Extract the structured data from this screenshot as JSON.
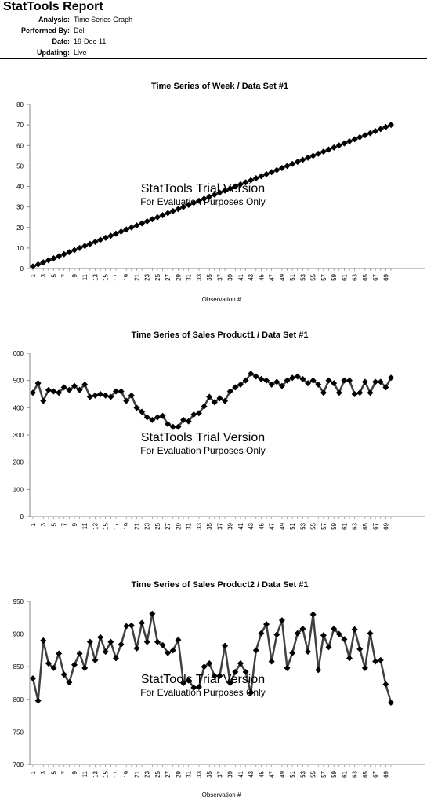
{
  "report": {
    "title": "StatTools Report",
    "meta": [
      {
        "key": "Analysis:",
        "value": "Time Series Graph"
      },
      {
        "key": "Performed By:",
        "value": "Dell"
      },
      {
        "key": "Date:",
        "value": "19-Dec-11"
      },
      {
        "key": "Updating:",
        "value": "Live"
      }
    ]
  },
  "watermark": {
    "line1": "StatTools Trial Version",
    "line2": "For Evaluation Purposes Only"
  },
  "chart_data": [
    {
      "type": "line",
      "title": "Time Series of Week / Data Set #1",
      "xlabel": "Observation #",
      "ylabel": "",
      "ylim": [
        0,
        80
      ],
      "yticks": [
        0,
        10,
        20,
        30,
        40,
        50,
        60,
        70,
        80
      ],
      "x": [
        1,
        2,
        3,
        4,
        5,
        6,
        7,
        8,
        9,
        10,
        11,
        12,
        13,
        14,
        15,
        16,
        17,
        18,
        19,
        20,
        21,
        22,
        23,
        24,
        25,
        26,
        27,
        28,
        29,
        30,
        31,
        32,
        33,
        34,
        35,
        36,
        37,
        38,
        39,
        40,
        41,
        42,
        43,
        44,
        45,
        46,
        47,
        48,
        49,
        50,
        51,
        52,
        53,
        54,
        55,
        56,
        57,
        58,
        59,
        60,
        61,
        62,
        63,
        64,
        65,
        66,
        67,
        68,
        69,
        70
      ],
      "xticks": [
        1,
        3,
        5,
        7,
        9,
        11,
        13,
        15,
        17,
        19,
        21,
        23,
        25,
        27,
        29,
        31,
        33,
        35,
        37,
        39,
        41,
        43,
        45,
        47,
        49,
        51,
        53,
        55,
        57,
        59,
        61,
        63,
        65,
        67,
        69
      ],
      "series": [
        {
          "values": [
            1,
            2,
            3,
            4,
            5,
            6,
            7,
            8,
            9,
            10,
            11,
            12,
            13,
            14,
            15,
            16,
            17,
            18,
            19,
            20,
            21,
            22,
            23,
            24,
            25,
            26,
            27,
            28,
            29,
            30,
            31,
            32,
            33,
            34,
            35,
            36,
            37,
            38,
            39,
            40,
            41,
            42,
            43,
            44,
            45,
            46,
            47,
            48,
            49,
            50,
            51,
            52,
            53,
            54,
            55,
            56,
            57,
            58,
            59,
            60,
            61,
            62,
            63,
            64,
            65,
            66,
            67,
            68,
            69,
            70
          ]
        }
      ],
      "grid": false
    },
    {
      "type": "line",
      "title": "Time Series of Sales Product1 / Data Set #1",
      "xlabel": "Observation #",
      "ylabel": "",
      "ylim": [
        0,
        600
      ],
      "yticks": [
        0,
        100,
        200,
        300,
        400,
        500,
        600
      ],
      "x": [
        1,
        2,
        3,
        4,
        5,
        6,
        7,
        8,
        9,
        10,
        11,
        12,
        13,
        14,
        15,
        16,
        17,
        18,
        19,
        20,
        21,
        22,
        23,
        24,
        25,
        26,
        27,
        28,
        29,
        30,
        31,
        32,
        33,
        34,
        35,
        36,
        37,
        38,
        39,
        40,
        41,
        42,
        43,
        44,
        45,
        46,
        47,
        48,
        49,
        50,
        51,
        52,
        53,
        54,
        55,
        56,
        57,
        58,
        59,
        60,
        61,
        62,
        63,
        64,
        65,
        66,
        67,
        68,
        69,
        70
      ],
      "xticks": [
        1,
        3,
        5,
        7,
        9,
        11,
        13,
        15,
        17,
        19,
        21,
        23,
        25,
        27,
        29,
        31,
        33,
        35,
        37,
        39,
        41,
        43,
        45,
        47,
        49,
        51,
        53,
        55,
        57,
        59,
        61,
        63,
        65,
        67,
        69
      ],
      "series": [
        {
          "values": [
            455,
            490,
            425,
            465,
            460,
            455,
            475,
            465,
            480,
            465,
            485,
            440,
            445,
            450,
            445,
            440,
            460,
            460,
            425,
            445,
            400,
            385,
            365,
            355,
            365,
            370,
            340,
            330,
            330,
            355,
            350,
            375,
            380,
            405,
            440,
            420,
            435,
            425,
            460,
            475,
            485,
            500,
            525,
            515,
            505,
            500,
            485,
            495,
            480,
            500,
            510,
            515,
            505,
            490,
            500,
            485,
            455,
            500,
            490,
            455,
            500,
            500,
            450,
            455,
            495,
            455,
            495,
            495,
            475,
            510
          ]
        }
      ],
      "grid": false
    },
    {
      "type": "line",
      "title": "Time Series of Sales Product2 / Data Set #1",
      "xlabel": "Observation #",
      "ylabel": "",
      "ylim": [
        700,
        950
      ],
      "yticks": [
        700,
        750,
        800,
        850,
        900,
        950
      ],
      "x": [
        1,
        2,
        3,
        4,
        5,
        6,
        7,
        8,
        9,
        10,
        11,
        12,
        13,
        14,
        15,
        16,
        17,
        18,
        19,
        20,
        21,
        22,
        23,
        24,
        25,
        26,
        27,
        28,
        29,
        30,
        31,
        32,
        33,
        34,
        35,
        36,
        37,
        38,
        39,
        40,
        41,
        42,
        43,
        44,
        45,
        46,
        47,
        48,
        49,
        50,
        51,
        52,
        53,
        54,
        55,
        56,
        57,
        58,
        59,
        60,
        61,
        62,
        63,
        64,
        65,
        66,
        67,
        68,
        69,
        70
      ],
      "xticks": [
        1,
        3,
        5,
        7,
        9,
        11,
        13,
        15,
        17,
        19,
        21,
        23,
        25,
        27,
        29,
        31,
        33,
        35,
        37,
        39,
        41,
        43,
        45,
        47,
        49,
        51,
        53,
        55,
        57,
        59,
        61,
        63,
        65,
        67,
        69
      ],
      "series": [
        {
          "values": [
            832,
            798,
            890,
            855,
            848,
            870,
            838,
            826,
            853,
            870,
            848,
            888,
            860,
            895,
            873,
            888,
            863,
            884,
            912,
            913,
            878,
            917,
            888,
            931,
            888,
            883,
            871,
            875,
            891,
            825,
            829,
            818,
            819,
            850,
            855,
            836,
            836,
            882,
            825,
            842,
            855,
            842,
            810,
            875,
            901,
            915,
            858,
            899,
            921,
            848,
            871,
            901,
            908,
            873,
            930,
            845,
            898,
            880,
            908,
            900,
            892,
            863,
            907,
            877,
            848,
            901,
            858,
            860,
            823,
            795
          ]
        }
      ],
      "grid": false
    }
  ]
}
